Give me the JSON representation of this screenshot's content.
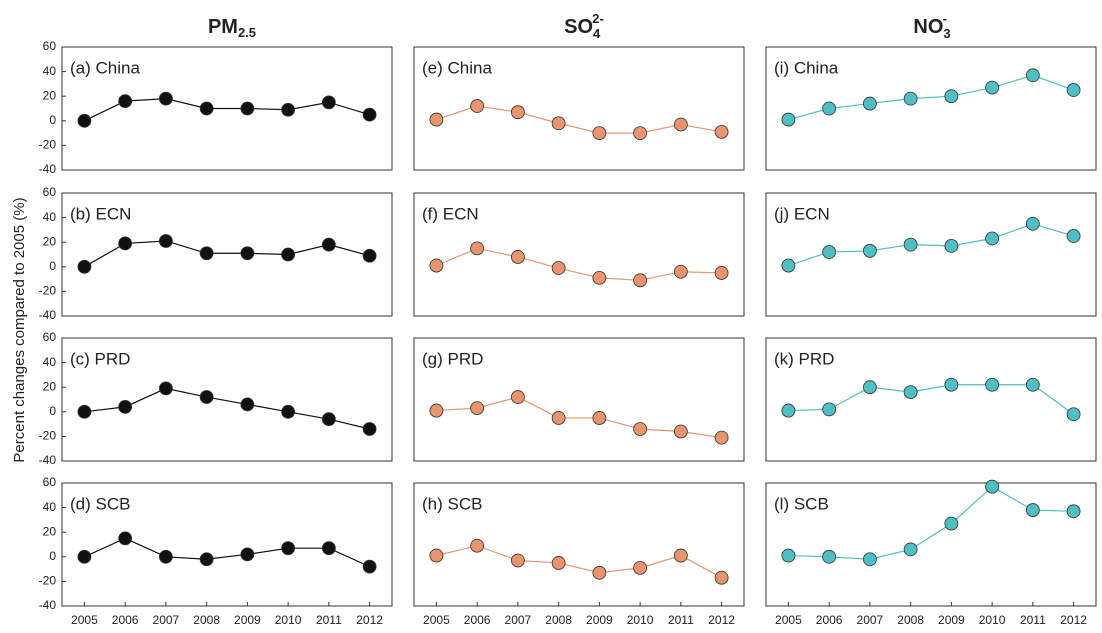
{
  "y_label": "Percent changes compared to 2005 (%)",
  "column_titles": [
    {
      "text": "PM",
      "sub": "2.5"
    },
    {
      "text": "SO",
      "sub": "4",
      "sup": "2-"
    },
    {
      "text": "NO",
      "sub": "3",
      "sup": "-"
    }
  ],
  "chart_data": [
    {
      "type": "line",
      "title": "(a) China",
      "color": "#111111",
      "x": [
        2005,
        2006,
        2007,
        2008,
        2009,
        2010,
        2011,
        2012
      ],
      "values": [
        0,
        16,
        18,
        10,
        10,
        9,
        15,
        5
      ],
      "xlim": [
        2004.45,
        2012.55
      ],
      "ylim": [
        -40,
        60
      ],
      "yticks": [
        -40,
        -20,
        0,
        20,
        40,
        60
      ]
    },
    {
      "type": "line",
      "title": "(b) ECN",
      "color": "#111111",
      "x": [
        2005,
        2006,
        2007,
        2008,
        2009,
        2010,
        2011,
        2012
      ],
      "values": [
        0,
        19,
        21,
        11,
        11,
        10,
        18,
        9
      ],
      "xlim": [
        2004.45,
        2012.55
      ],
      "ylim": [
        -40,
        60
      ],
      "yticks": [
        -40,
        -20,
        0,
        20,
        40,
        60
      ]
    },
    {
      "type": "line",
      "title": "(c) PRD",
      "color": "#111111",
      "x": [
        2005,
        2006,
        2007,
        2008,
        2009,
        2010,
        2011,
        2012
      ],
      "values": [
        0,
        4,
        19,
        12,
        6,
        0,
        -6,
        -14
      ],
      "xlim": [
        2004.45,
        2012.55
      ],
      "ylim": [
        -40,
        60
      ],
      "yticks": [
        -40,
        -20,
        0,
        20,
        40,
        60
      ]
    },
    {
      "type": "line",
      "title": "(d) SCB",
      "color": "#111111",
      "x": [
        2005,
        2006,
        2007,
        2008,
        2009,
        2010,
        2011,
        2012
      ],
      "values": [
        0,
        15,
        0,
        -2,
        2,
        7,
        7,
        -8
      ],
      "xlim": [
        2004.45,
        2012.55
      ],
      "ylim": [
        -40,
        60
      ],
      "yticks": [
        -40,
        -20,
        0,
        20,
        40,
        60
      ],
      "xticks": [
        2005,
        2006,
        2007,
        2008,
        2009,
        2010,
        2011,
        2012
      ]
    },
    {
      "type": "line",
      "title": "(e) China",
      "color": "#e8956f",
      "x": [
        2005,
        2006,
        2007,
        2008,
        2009,
        2010,
        2011,
        2012
      ],
      "values": [
        1,
        12,
        7,
        -2,
        -10,
        -10,
        -3,
        -9
      ],
      "xlim": [
        2004.45,
        2012.55
      ],
      "ylim": [
        -40,
        60
      ]
    },
    {
      "type": "line",
      "title": "(f)  ECN",
      "color": "#e8956f",
      "x": [
        2005,
        2006,
        2007,
        2008,
        2009,
        2010,
        2011,
        2012
      ],
      "values": [
        1,
        15,
        8,
        -1,
        -9,
        -11,
        -4,
        -5
      ],
      "xlim": [
        2004.45,
        2012.55
      ],
      "ylim": [
        -40,
        60
      ]
    },
    {
      "type": "line",
      "title": "(g) PRD",
      "color": "#e8956f",
      "x": [
        2005,
        2006,
        2007,
        2008,
        2009,
        2010,
        2011,
        2012
      ],
      "values": [
        1,
        3,
        12,
        -5,
        -5,
        -14,
        -16,
        -21
      ],
      "xlim": [
        2004.45,
        2012.55
      ],
      "ylim": [
        -40,
        60
      ]
    },
    {
      "type": "line",
      "title": "(h) SCB",
      "color": "#e8956f",
      "x": [
        2005,
        2006,
        2007,
        2008,
        2009,
        2010,
        2011,
        2012
      ],
      "values": [
        1,
        9,
        -3,
        -5,
        -13,
        -9,
        1,
        -17
      ],
      "xlim": [
        2004.45,
        2012.55
      ],
      "ylim": [
        -40,
        60
      ],
      "xticks": [
        2005,
        2006,
        2007,
        2008,
        2009,
        2010,
        2011,
        2012
      ]
    },
    {
      "type": "line",
      "title": "(i) China",
      "color": "#4fbfc4",
      "x": [
        2005,
        2006,
        2007,
        2008,
        2009,
        2010,
        2011,
        2012
      ],
      "values": [
        1,
        10,
        14,
        18,
        20,
        27,
        37,
        25
      ],
      "xlim": [
        2004.45,
        2012.55
      ],
      "ylim": [
        -40,
        60
      ]
    },
    {
      "type": "line",
      "title": "(j) ECN",
      "color": "#4fbfc4",
      "x": [
        2005,
        2006,
        2007,
        2008,
        2009,
        2010,
        2011,
        2012
      ],
      "values": [
        1,
        12,
        13,
        18,
        17,
        23,
        35,
        25
      ],
      "xlim": [
        2004.45,
        2012.55
      ],
      "ylim": [
        -40,
        60
      ]
    },
    {
      "type": "line",
      "title": "(k) PRD",
      "color": "#4fbfc4",
      "x": [
        2005,
        2006,
        2007,
        2008,
        2009,
        2010,
        2011,
        2012
      ],
      "values": [
        1,
        2,
        20,
        16,
        22,
        22,
        22,
        -2
      ],
      "xlim": [
        2004.45,
        2012.55
      ],
      "ylim": [
        -40,
        60
      ]
    },
    {
      "type": "line",
      "title": "(l)  SCB",
      "color": "#4fbfc4",
      "x": [
        2005,
        2006,
        2007,
        2008,
        2009,
        2010,
        2011,
        2012
      ],
      "values": [
        1,
        0,
        -2,
        6,
        27,
        57,
        38,
        37
      ],
      "xlim": [
        2004.45,
        2012.55
      ],
      "ylim": [
        -40,
        60
      ],
      "xticks": [
        2005,
        2006,
        2007,
        2008,
        2009,
        2010,
        2011,
        2012
      ]
    }
  ]
}
